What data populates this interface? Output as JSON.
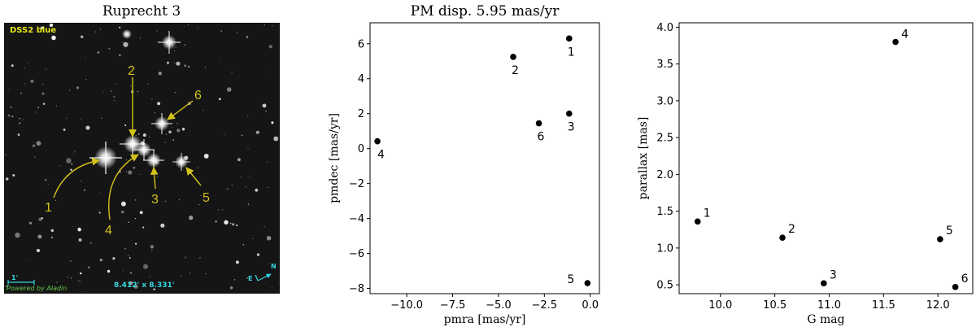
{
  "colors": {
    "point": "#000000",
    "annotation": "#d4c21c",
    "overlay_cyan": "#35d6e0",
    "overlay_green": "#64c84a",
    "sky": "#151515"
  },
  "panels": {
    "image": {
      "title": "Ruprecht 3",
      "survey_label": "DSS2 blue",
      "scale_label": "1'",
      "credit": "Powered by Aladin",
      "fov": "8.412' x 8.331'",
      "compass_n": "N",
      "compass_e": "E",
      "star_labels": [
        "1",
        "2",
        "3",
        "4",
        "5",
        "6"
      ]
    }
  },
  "chart_data": [
    {
      "type": "scatter",
      "title": "PM disp. 5.95 mas/yr",
      "xlabel": "pmra [mas/yr]",
      "ylabel": "pmdec [mas/yr]",
      "xlim": [
        -12.0,
        0.5
      ],
      "ylim": [
        -8.3,
        7.2
      ],
      "xticks": [
        -10.0,
        -7.5,
        -5.0,
        -2.5,
        0.0
      ],
      "xtick_labels": [
        "−10.0",
        "−7.5",
        "−5.0",
        "−2.5",
        "0.0"
      ],
      "yticks": [
        -8,
        -6,
        -4,
        -2,
        0,
        2,
        4,
        6
      ],
      "ytick_labels": [
        "−8",
        "−6",
        "−4",
        "−2",
        "0",
        "2",
        "4",
        "6"
      ],
      "points": [
        {
          "label": "1",
          "x": -1.15,
          "y": 6.3
        },
        {
          "label": "2",
          "x": -4.2,
          "y": 5.25
        },
        {
          "label": "3",
          "x": -1.15,
          "y": 2.0
        },
        {
          "label": "4",
          "x": -11.6,
          "y": 0.42
        },
        {
          "label": "5",
          "x": -0.15,
          "y": -7.7
        },
        {
          "label": "6",
          "x": -2.8,
          "y": 1.45
        }
      ]
    },
    {
      "type": "scatter",
      "title": "",
      "xlabel": "G mag",
      "ylabel": "parallax [mas]",
      "xlim": [
        9.62,
        12.32
      ],
      "ylim": [
        0.38,
        4.06
      ],
      "xticks": [
        10.0,
        10.5,
        11.0,
        11.5,
        12.0
      ],
      "xtick_labels": [
        "10.0",
        "10.5",
        "11.0",
        "11.5",
        "12.0"
      ],
      "yticks": [
        0.5,
        1.0,
        1.5,
        2.0,
        2.5,
        3.0,
        3.5,
        4.0
      ],
      "ytick_labels": [
        "0.5",
        "1.0",
        "1.5",
        "2.0",
        "2.5",
        "3.0",
        "3.5",
        "4.0"
      ],
      "points": [
        {
          "label": "1",
          "x": 9.79,
          "y": 1.36
        },
        {
          "label": "2",
          "x": 10.57,
          "y": 1.14
        },
        {
          "label": "3",
          "x": 10.95,
          "y": 0.52
        },
        {
          "label": "4",
          "x": 11.61,
          "y": 3.8
        },
        {
          "label": "5",
          "x": 12.02,
          "y": 1.12
        },
        {
          "label": "6",
          "x": 12.16,
          "y": 0.47
        }
      ]
    }
  ]
}
